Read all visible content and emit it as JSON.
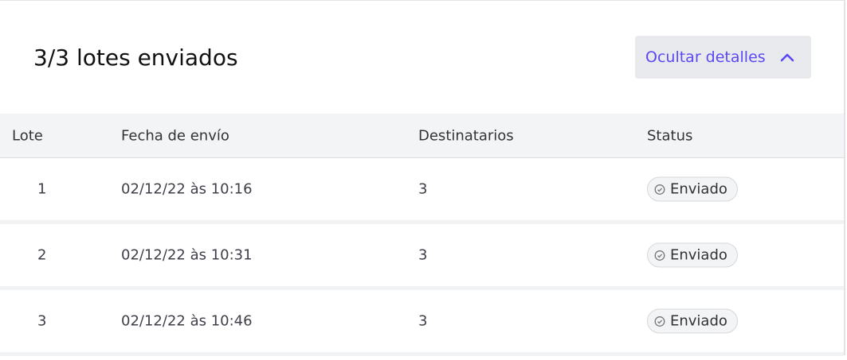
{
  "header": {
    "title": "3/3 lotes enviados",
    "toggle_label": "Ocultar detalles",
    "toggle_icon": "chevron-up-icon",
    "accent": "#5b48f5"
  },
  "table": {
    "columns": [
      "Lote",
      "Fecha de envío",
      "Destinatarios",
      "Status"
    ],
    "rows": [
      {
        "lote": "1",
        "fecha": "02/12/22 às 10:16",
        "destinatarios": "3",
        "status": "Enviado"
      },
      {
        "lote": "2",
        "fecha": "02/12/22 às 10:31",
        "destinatarios": "3",
        "status": "Enviado"
      },
      {
        "lote": "3",
        "fecha": "02/12/22 às 10:46",
        "destinatarios": "3",
        "status": "Enviado"
      }
    ]
  }
}
